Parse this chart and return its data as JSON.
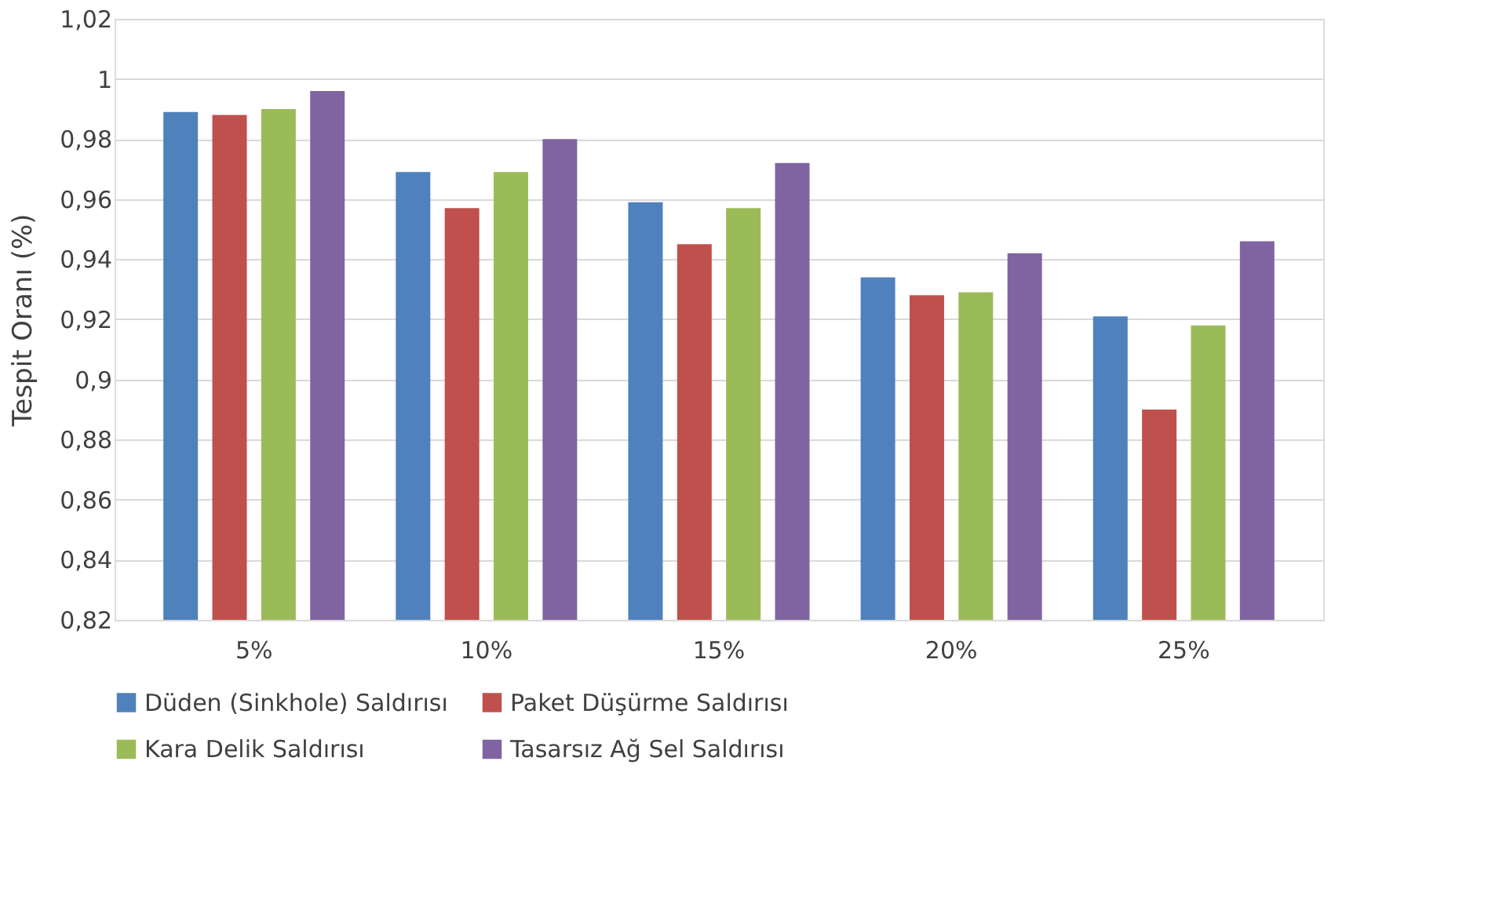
{
  "chart_data": {
    "type": "bar",
    "ylabel": "Tespit Oranı (%)",
    "categories": [
      "5%",
      "10%",
      "15%",
      "20%",
      "25%"
    ],
    "series": [
      {
        "name": "Düden (Sinkhole) Saldırısı",
        "color": "#4f81bd",
        "values": [
          0.989,
          0.969,
          0.959,
          0.934,
          0.921
        ]
      },
      {
        "name": "Paket Düşürme Saldırısı",
        "color": "#c0504d",
        "values": [
          0.988,
          0.957,
          0.945,
          0.928,
          0.89
        ]
      },
      {
        "name": "Kara Delik Saldırısı",
        "color": "#9bbb59",
        "values": [
          0.99,
          0.969,
          0.957,
          0.929,
          0.918
        ]
      },
      {
        "name": "Tasarsız Ağ Sel Saldırısı",
        "color": "#8064a2",
        "values": [
          0.996,
          0.98,
          0.972,
          0.942,
          0.946
        ]
      }
    ],
    "ylim": [
      0.82,
      1.02
    ],
    "yticks": [
      {
        "value": 0.82,
        "label": "0,82"
      },
      {
        "value": 0.84,
        "label": "0,84"
      },
      {
        "value": 0.86,
        "label": "0,86"
      },
      {
        "value": 0.88,
        "label": "0,88"
      },
      {
        "value": 0.9,
        "label": "0,9"
      },
      {
        "value": 0.92,
        "label": "0,92"
      },
      {
        "value": 0.94,
        "label": "0,94"
      },
      {
        "value": 0.96,
        "label": "0,96"
      },
      {
        "value": 0.98,
        "label": "0,98"
      },
      {
        "value": 1,
        "label": "1"
      },
      {
        "value": 1.02,
        "label": "1,02"
      }
    ],
    "grid": "y",
    "legend": "bottom"
  }
}
